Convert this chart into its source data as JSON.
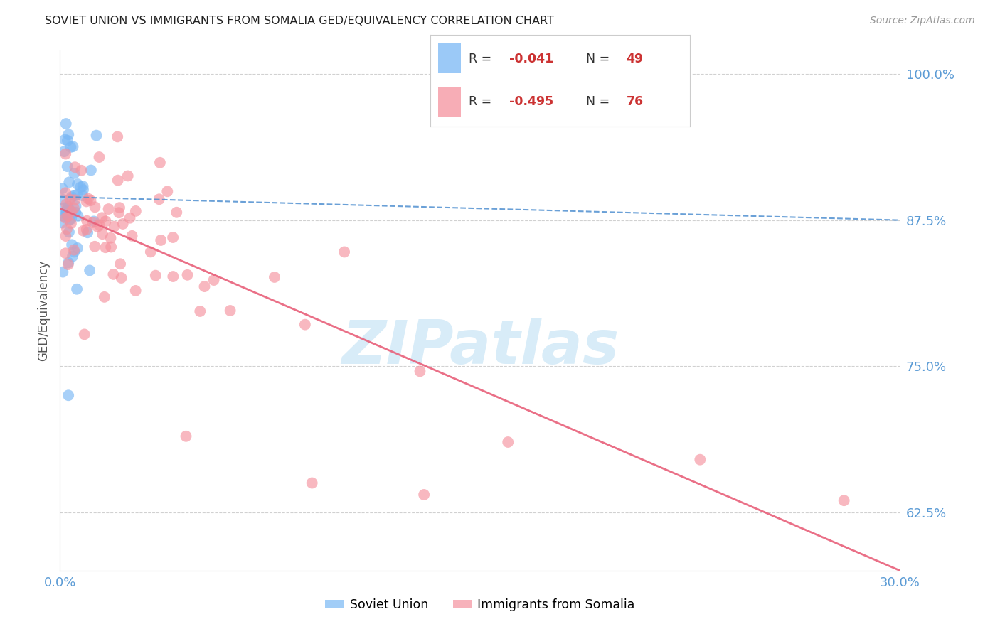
{
  "title": "SOVIET UNION VS IMMIGRANTS FROM SOMALIA GED/EQUIVALENCY CORRELATION CHART",
  "source": "Source: ZipAtlas.com",
  "ylabel": "GED/Equivalency",
  "xlim": [
    0.0,
    0.3
  ],
  "ylim": [
    0.575,
    1.02
  ],
  "yticks": [
    0.625,
    0.75,
    0.875,
    1.0
  ],
  "ytick_labels": [
    "62.5%",
    "75.0%",
    "87.5%",
    "100.0%"
  ],
  "xticks": [
    0.0,
    0.05,
    0.1,
    0.15,
    0.2,
    0.25,
    0.3
  ],
  "xtick_labels": [
    "0.0%",
    "",
    "",
    "",
    "",
    "",
    "30.0%"
  ],
  "soviet_color": "#7ab8f5",
  "somalia_color": "#f5929e",
  "trendline_soviet_color": "#5090d0",
  "trendline_somalia_color": "#e8607a",
  "background_color": "#ffffff",
  "grid_color": "#cccccc",
  "axis_label_color": "#5b9bd5",
  "title_color": "#222222",
  "watermark_color": "#d8ecf8",
  "legend_box_color": "#f0f8ff",
  "r_n_color": "#cc3333",
  "legend_text_color": "#333333",
  "soviet_R": -0.041,
  "soviet_N": 49,
  "somalia_R": -0.495,
  "somalia_N": 76,
  "trendline_soviet": [
    0.0,
    0.3,
    0.895,
    0.875
  ],
  "trendline_somalia": [
    0.0,
    0.3,
    0.885,
    0.575
  ]
}
